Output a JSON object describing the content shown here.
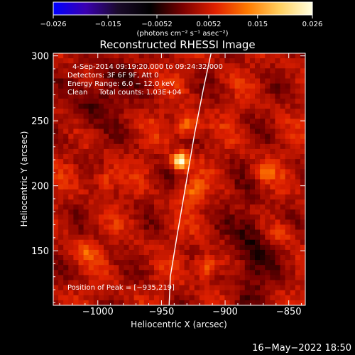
{
  "chart_data": {
    "type": "heatmap",
    "title": "Reconstructed RHESSI Image",
    "xlabel": "Heliocentric X (arcsec)",
    "ylabel": "Heliocentric Y (arcsec)",
    "xlim": [
      -1035,
      -837
    ],
    "ylim": [
      108,
      302
    ],
    "x_ticks": [
      -1000,
      -950,
      -900,
      -850
    ],
    "x_tick_labels": [
      "−1000",
      "−950",
      "−900",
      "−850"
    ],
    "y_ticks": [
      150,
      200,
      250,
      300
    ],
    "y_tick_labels": [
      "150",
      "200",
      "250",
      "300"
    ],
    "colorbar": {
      "range": [
        -0.026,
        0.026
      ],
      "ticks": [
        -0.026,
        -0.015,
        -0.0052,
        0.0052,
        0.015,
        0.026
      ],
      "tick_labels": [
        "−0.026",
        "−0.015",
        "−0.0052",
        "0.0052",
        "0.015",
        "0.026"
      ],
      "unit_label": "(photons cm⁻² s⁻¹ asec⁻²)",
      "colors": [
        "#0000ff",
        "#3a00b0",
        "#1a0a2a",
        "#000000",
        "#7a0000",
        "#e02000",
        "#ff7a00",
        "#ffd060",
        "#ffffe0"
      ]
    },
    "info_lines": [
      "4-Sep-2014 09:19:20.000 to 09:24:32.000",
      "Detectors: 3F 6F 9F, Att 0",
      "Energy Range: 6.0 − 12.0 keV",
      "Clean     Total counts: 1.03E+04"
    ],
    "peak_label": "Position of Peak = [−935,219]",
    "peak": {
      "x": -935,
      "y": 219,
      "value": 0.026
    },
    "bright_sources": [
      {
        "x": -935,
        "y": 219,
        "value": 0.026
      },
      {
        "x": -930,
        "y": 247,
        "value": 0.014
      },
      {
        "x": -915,
        "y": 138,
        "value": 0.013
      },
      {
        "x": -925,
        "y": 195,
        "value": 0.011
      },
      {
        "x": -995,
        "y": 205,
        "value": 0.01
      },
      {
        "x": -1010,
        "y": 150,
        "value": 0.009
      },
      {
        "x": -870,
        "y": 210,
        "value": 0.009
      },
      {
        "x": -855,
        "y": 165,
        "value": 0.008
      }
    ],
    "limb_curve": [
      {
        "x": -944,
        "y": 108
      },
      {
        "x": -943,
        "y": 130
      },
      {
        "x": -938,
        "y": 160
      },
      {
        "x": -931,
        "y": 200
      },
      {
        "x": -924,
        "y": 240
      },
      {
        "x": -917,
        "y": 275
      },
      {
        "x": -911,
        "y": 302
      }
    ],
    "grid": false,
    "colorbar_position": "top"
  },
  "footer": {
    "date_label": "16−May−2022 18:50"
  },
  "colors": {
    "background": "#000000",
    "foreground": "#ffffff"
  }
}
